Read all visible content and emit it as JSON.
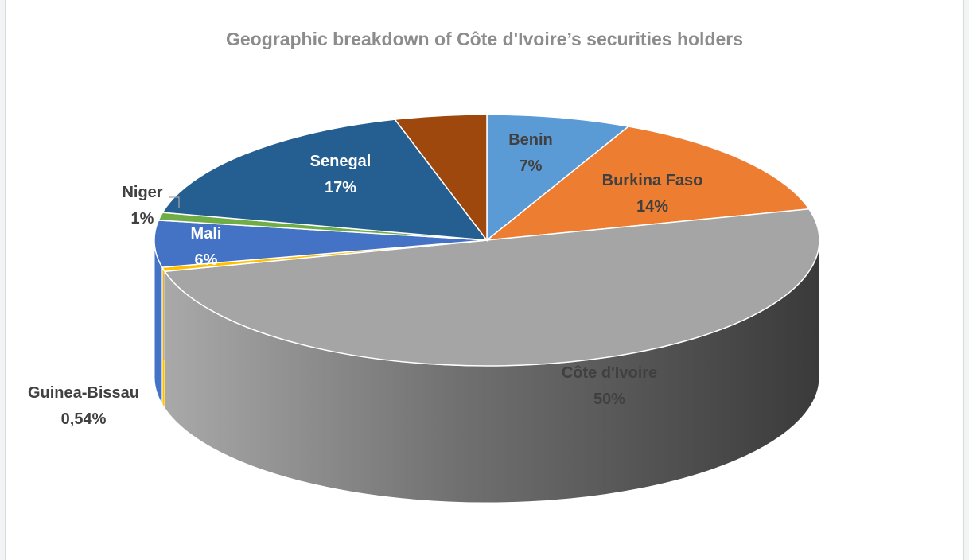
{
  "chart_data": {
    "type": "pie",
    "style": "3d",
    "title": "Geographic breakdown of Côte d'Ivoire’s securities holders",
    "slices": [
      {
        "name": "Benin",
        "label": "7%",
        "value": 7,
        "color": "#5b9bd5"
      },
      {
        "name": "Burkina Faso",
        "label": "14%",
        "value": 14,
        "color": "#ed7d31"
      },
      {
        "name": "Côte d'Ivoire",
        "label": "50%",
        "value": 50,
        "color": "#a5a5a5"
      },
      {
        "name": "Guinea-Bissau",
        "label": "0,54%",
        "value": 0.54,
        "color": "#ffc000"
      },
      {
        "name": "Mali",
        "label": "6%",
        "value": 6,
        "color": "#4472c4"
      },
      {
        "name": "Niger",
        "label": "1%",
        "value": 1,
        "color": "#70ad47"
      },
      {
        "name": "Senegal",
        "label": "17%",
        "value": 17,
        "color": "#255e91"
      },
      {
        "name": "",
        "label": "",
        "value": 4.46,
        "color": "#9e480e"
      }
    ]
  }
}
